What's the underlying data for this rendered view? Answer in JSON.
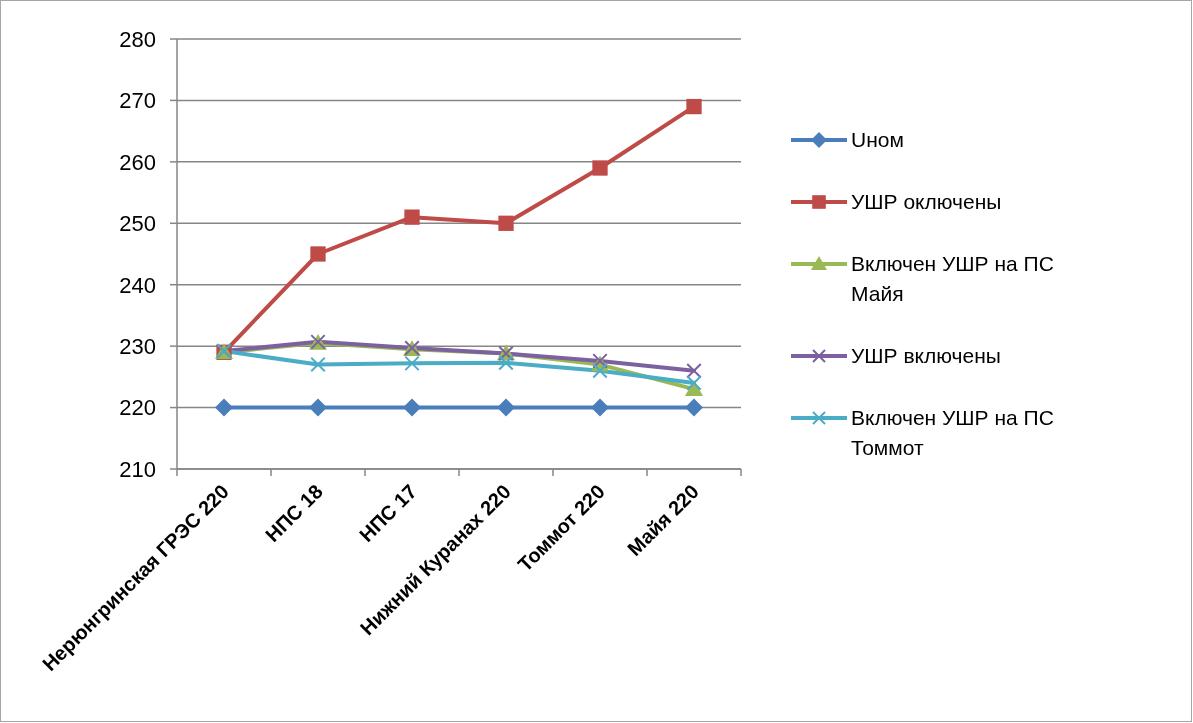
{
  "chart_data": {
    "type": "line",
    "categories": [
      "Нерюнгринская ГРЭС 220",
      "НПС 18",
      "НПС 17",
      "Нижний Куранах 220",
      "Томмот 220",
      "Майя 220"
    ],
    "series": [
      {
        "name": "Uном",
        "color": "#4a7ebb",
        "marker": "diamond",
        "values": [
          220,
          220,
          220,
          220,
          220,
          220
        ]
      },
      {
        "name": "УШР оключены",
        "color": "#be4b48",
        "marker": "square",
        "values": [
          229,
          245,
          251,
          250,
          259,
          269
        ]
      },
      {
        "name": "Включен УШР на ПС Майя",
        "color": "#98b954",
        "marker": "triangle",
        "values": [
          229,
          230.5,
          229.5,
          228.8,
          227,
          223
        ]
      },
      {
        "name": "УШР включены",
        "color": "#7d60a0",
        "marker": "cross",
        "values": [
          229.2,
          230.7,
          229.7,
          228.8,
          227.6,
          226
        ]
      },
      {
        "name": "Включен УШР на ПС Томмот",
        "color": "#4bacc6",
        "marker": "cross",
        "values": [
          229.2,
          227,
          227.2,
          227.3,
          226,
          224
        ]
      }
    ],
    "ylim": [
      210,
      280
    ],
    "yticks": [
      210,
      220,
      230,
      240,
      250,
      260,
      270,
      280
    ],
    "grid": "y",
    "legend": "right"
  }
}
